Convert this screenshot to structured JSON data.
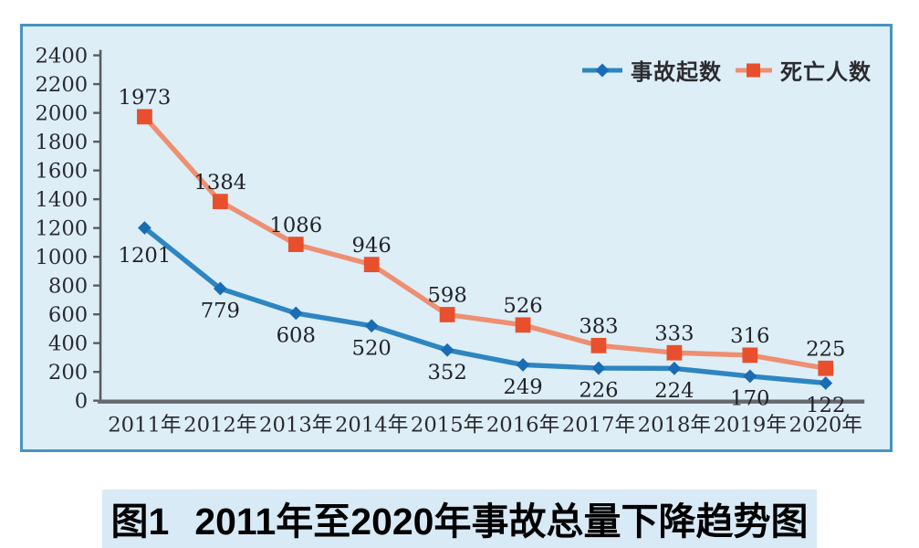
{
  "caption": {
    "prefix": "图1",
    "text": "2011年至2020年事故总量下降趋势图",
    "highlight_color": "#D7EAF6"
  },
  "panel": {
    "background": "#DDEEF7",
    "border_color": "#4793C1"
  },
  "chart_data": {
    "type": "line",
    "title": "",
    "xlabel": "",
    "ylabel": "",
    "categories": [
      "2011年",
      "2012年",
      "2013年",
      "2014年",
      "2015年",
      "2016年",
      "2017年",
      "2018年",
      "2019年",
      "2020年"
    ],
    "series": [
      {
        "name": "事故起数",
        "values": [
          1201,
          779,
          608,
          520,
          352,
          249,
          226,
          224,
          170,
          122
        ],
        "color": "#2E86C1",
        "marker": "diamond",
        "marker_color": "#1A6DB4",
        "label_position": "below",
        "label_dy_overrides": {
          "0": 38
        }
      },
      {
        "name": "死亡人数",
        "values": [
          1973,
          1384,
          1086,
          946,
          598,
          526,
          383,
          333,
          316,
          225
        ],
        "color": "#EE8F72",
        "marker": "square",
        "marker_color": "#E8502D",
        "label_position": "above"
      }
    ],
    "ylim": [
      0,
      2400
    ],
    "ytick_step": 200,
    "grid": false,
    "legend_position": "top-right",
    "axis_color": "#595B5E",
    "label_color": "#2A2A33"
  }
}
